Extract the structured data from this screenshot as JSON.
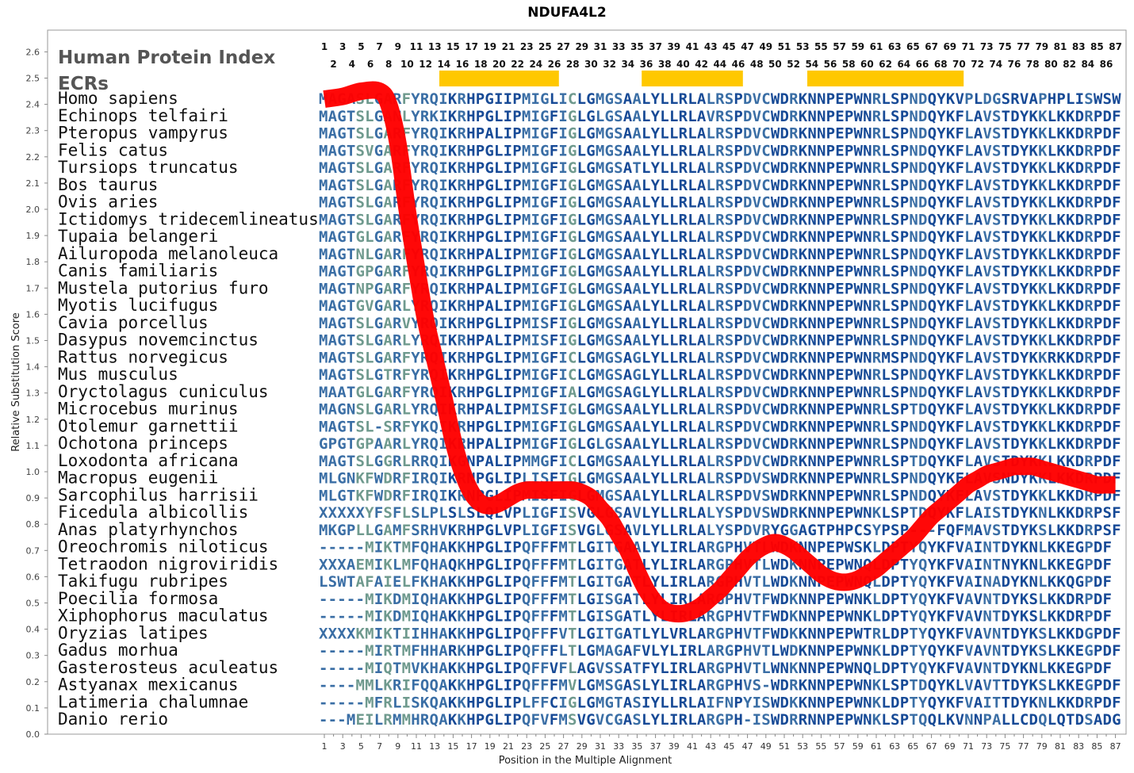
{
  "chart_data": {
    "type": "line",
    "title": "NDUFA4L2",
    "xlabel": "Position in the Multiple Alignment",
    "ylabel": "Relative Substitution Score",
    "ylim": [
      0.0,
      2.6
    ],
    "xlim": [
      1,
      87
    ],
    "yticks": [
      "0.0",
      "0.1",
      "0.2",
      "0.3",
      "0.4",
      "0.5",
      "0.6",
      "0.7",
      "0.8",
      "0.9",
      "1.0",
      "1.1",
      "1.2",
      "1.3",
      "1.4",
      "1.5",
      "1.6",
      "1.7",
      "1.8",
      "1.9",
      "2.0",
      "2.1",
      "2.2",
      "2.3",
      "2.4",
      "2.5",
      "2.6"
    ],
    "xticks_bottom": [
      "1",
      "3",
      "5",
      "7",
      "9",
      "11",
      "13",
      "15",
      "17",
      "19",
      "21",
      "23",
      "25",
      "27",
      "29",
      "31",
      "33",
      "35",
      "37",
      "39",
      "41",
      "43",
      "45",
      "47",
      "49",
      "51",
      "53",
      "55",
      "57",
      "59",
      "61",
      "63",
      "65",
      "67",
      "69",
      "71",
      "73",
      "75",
      "77",
      "79",
      "81",
      "83",
      "85",
      "87"
    ],
    "position_row_odd": [
      "1",
      "3",
      "5",
      "7",
      "9",
      "11",
      "13",
      "15",
      "17",
      "19",
      "21",
      "23",
      "25",
      "27",
      "29",
      "31",
      "33",
      "35",
      "37",
      "39",
      "41",
      "43",
      "45",
      "47",
      "49",
      "51",
      "53",
      "55",
      "57",
      "59",
      "61",
      "63",
      "65",
      "67",
      "69",
      "71",
      "73",
      "75",
      "77",
      "79",
      "81",
      "83",
      "85",
      "87"
    ],
    "position_row_even": [
      "2",
      "4",
      "6",
      "8",
      "10",
      "12",
      "14",
      "16",
      "18",
      "20",
      "22",
      "24",
      "26",
      "28",
      "30",
      "32",
      "34",
      "36",
      "38",
      "40",
      "42",
      "44",
      "46",
      "48",
      "50",
      "52",
      "54",
      "56",
      "58",
      "60",
      "62",
      "64",
      "66",
      "68",
      "70",
      "72",
      "74",
      "76",
      "78",
      "80",
      "82",
      "84",
      "86"
    ],
    "header_protein_index": "Human Protein Index",
    "header_ecrs": "ECRs",
    "ecr_ranges": [
      [
        14,
        26
      ],
      [
        36,
        46
      ],
      [
        54,
        70
      ]
    ],
    "ecr_color": "#ffc800",
    "curve_color": "#ff0000",
    "series": [
      {
        "x": [
          1,
          3,
          5,
          7,
          8,
          9,
          10,
          11,
          12,
          13,
          14,
          15,
          16,
          17,
          18,
          19,
          20,
          21,
          22,
          23,
          24,
          25,
          26,
          27,
          28,
          29,
          30,
          31,
          32,
          33,
          34,
          35,
          36,
          37,
          38,
          39,
          40,
          41,
          42,
          43,
          44,
          45,
          46,
          47,
          48,
          49,
          50,
          51,
          52,
          53,
          54,
          55,
          56,
          57,
          58,
          59,
          60,
          61,
          62,
          63,
          64,
          65,
          66,
          67,
          68,
          69,
          70,
          71,
          72,
          73,
          74,
          75,
          76,
          77,
          78,
          79,
          80,
          81,
          82,
          83,
          84,
          85,
          86,
          87
        ],
        "values": [
          2.42,
          2.43,
          2.45,
          2.45,
          2.4,
          2.25,
          2.0,
          1.78,
          1.58,
          1.43,
          1.28,
          1.12,
          1.0,
          0.92,
          0.88,
          0.87,
          0.88,
          0.9,
          0.92,
          0.93,
          0.93,
          0.93,
          0.93,
          0.93,
          0.93,
          0.92,
          0.9,
          0.86,
          0.82,
          0.76,
          0.7,
          0.62,
          0.55,
          0.5,
          0.47,
          0.46,
          0.46,
          0.47,
          0.49,
          0.52,
          0.55,
          0.59,
          0.63,
          0.67,
          0.7,
          0.72,
          0.73,
          0.72,
          0.7,
          0.67,
          0.64,
          0.61,
          0.59,
          0.58,
          0.58,
          0.59,
          0.61,
          0.63,
          0.66,
          0.69,
          0.72,
          0.75,
          0.79,
          0.83,
          0.86,
          0.89,
          0.92,
          0.95,
          0.97,
          0.99,
          1.0,
          1.01,
          1.02,
          1.02,
          1.02,
          1.01,
          1.0,
          0.99,
          0.98,
          0.97,
          0.96,
          0.95,
          0.95,
          0.95
        ]
      }
    ]
  },
  "alignment": [
    {
      "name": "Homo sapiens",
      "seq": "MAGASLGARFYRQIKRHPGIIPMIGLICLGMGSAALYLLRLALRSPDVCWDRKNNPEPWNRLSPNDQYKVPLDGSRVAPHPLISWSW"
    },
    {
      "name": "Echinops telfairi",
      "seq": "MAGTSLGANLYRKIKRHPGLIPMIGFIGLGLGSAALYLLRLAVRSPDVCWDRKNNPEPWNRLSPNDQYKFLAVSTDYKKLKKDRPDF"
    },
    {
      "name": "Pteropus vampyrus",
      "seq": "MAGTSLGARFYRQIKRHPALIPMIGFIGLGMGSAALYLLRLALRSPDVCWDRKNNPEPWNRLSPNDQYKFLAVSTDYKKLKKDRPDF"
    },
    {
      "name": "Felis catus",
      "seq": "MAGTSVGARFYRQIKRHPGLIPMIGFIGLGMGSAALYLLRLALRSPDVCWDRKNNPEPWNRLSPNDQYKFLAVSTDYKKLKKDRPDF"
    },
    {
      "name": "Tursiops truncatus",
      "seq": "MAGTSLGARFYRQIKRHPGLIPMIGFIGLGMGSATLYLLRLALRSPDVCWDRKNNPEPWNRLSPNDQYKFLAVSTDYKKLKKDRPDF"
    },
    {
      "name": "Bos taurus",
      "seq": "MAGTSLGARFYRQIKRHPGLIPMIGFIGLGMGSAALYLLRLALRSPDVCWDRKNNPEPWNRLSPNDQYKFLAVSTDYKKLKKDRPDF"
    },
    {
      "name": "Ovis aries",
      "seq": "MAGTSLGARFYRQIKRHPGLIPMIGFIGLGMGSAALYLLRLALRSPDVCWDRKNNPEPWNRLSPNDQYKFLAVSTDYKKLKKDRPDF"
    },
    {
      "name": "Ictidomys tridecemlineatus",
      "seq": "MAGTSLGARFYRQIKRHPGLIPMIGFIGLGMGSAALYLLRLALRSPDVCWDRKNNPEPWNRLSPNDQYKFLAVSTDYKKLKKDRPDF"
    },
    {
      "name": "Tupaia belangeri",
      "seq": "MAGTGLGARFYRQIKRHPGLIPMIGFIGLGMGSAALYLLRLALRSPDVCWDRKNNPEPWNRLSPNDQYKFLAVSTDYKKLKKDRPDF"
    },
    {
      "name": "Ailuropoda melanoleuca",
      "seq": "MAGTNLGARFYRQIKRHPALIPMIGFIGLGMGSAALYLLRLALRSPDVCWDRKNNPEPWNRLSPNDQYKFLAVSTDYKKLKKDRPDF"
    },
    {
      "name": "Canis familiaris",
      "seq": "MAGTGPGARFYRQIKRHPGLIPMIGFIGLGMGSAALYLLRLALRSPDVCWDRKNNPEPWNRLSPNDQYKFLAVSTDYKKLKKDRPDF"
    },
    {
      "name": "Mustela putorius furo",
      "seq": "MAGTNPGARFYRQIKRHPALIPMIGFIGLGMGSAALYLLRLALRSPDVCWDRKNNPEPWNRLSPNDQYKFLAVSTDYKKLKKDRPDF"
    },
    {
      "name": "Myotis lucifugus",
      "seq": "MAGTGVGARLYRQIKRHPALIPMIGFIGLGMGSAALYLLRLALRSPDVCWDRKNNPEPWNRLSPNDQYKFLAVSTDYKKLKKDRPDF"
    },
    {
      "name": "Cavia porcellus",
      "seq": "MAGTSLGARVYRQIKRHPGLIPMISFIGLGMGSAALYLLRLALRSPDVCWDRKNNPEPWNRLSPNDQYKFLAVSTDYKKLKKDRPDF"
    },
    {
      "name": "Dasypus novemcinctus",
      "seq": "MAGTSLGARLYRQIKRHPALIPMISFIGLGMGSAALYLLRLALRSPDVCWDRKNNPEPWNRLSPNDQYKFLAVSTDYKKLKKDRPDF"
    },
    {
      "name": "Rattus norvegicus",
      "seq": "MAGTSLGARFYRQIKRHPGLIPMIGFICLGMGSAGLYLLRLALRSPDVCWDRKNNPEPWNRMSPNDQYKFLAVSTDYKKRKKDRPDF"
    },
    {
      "name": "Mus musculus",
      "seq": "MAGTSLGTRFYRQIKRHPGLIPMIGFICLGMGSAGLYLLRLALRSPDVCWDRKNNPEPWNRLSPNDQYKFLAVSTDYKKLKKDRPDF"
    },
    {
      "name": "Oryctolagus cuniculus",
      "seq": "MAATGLGARFYRQIKRHPGLIPMIGFIALGMGSAGLYLLRLALRSPDVCWDRKNNPEPWNRLSPNDQYKFLAVSTDYKKLKKDRPDF"
    },
    {
      "name": "Microcebus murinus",
      "seq": "MAGNSLGARLYRQIKRHPALIPMISFIGLGMGSAALYLLRLALRSPDVCWDRKNNPEPWNRLSPTDQYKFLAVSTDYKKLKKDRPDF"
    },
    {
      "name": "Otolemur garnettii",
      "seq": "MAGTSL-SRFYKQIKRHPGLIPMIGFIGLGMGSAALYLLRLALRSPDVCWDRKNNPEPWNRLSPNDQYKFLAVSTDYKKLKKDRPDF"
    },
    {
      "name": "Ochotona princeps",
      "seq": "GPGTGPAARLYRQIKRHPALIPMIGFIGLGLGSAALYLLRLALRSPDVCWDRKNNPEPWNRLSPNDQYKFLAVSTDYKKLKKDRPDF"
    },
    {
      "name": "Loxodonta africana",
      "seq": "MAGTSLGGRLRRQIKGNPALIPMMGFICLGMGSAALYLLRLALRSPDVCWDRKNNPEPWNRLSPTDQYKFLAVSTDYKKLKKDRPDF"
    },
    {
      "name": "Macropus eugenii",
      "seq": "MLGNKFWDRFIRQIKRNPGLIPLISFIGLGMGSAALYLLRLALRSPDVSWDRKNNPEPWNRLSPNDQYKFLAVSNDYKKLKKDRPDF"
    },
    {
      "name": "Sarcophilus harrisii",
      "seq": "MLGTKFWDRFIRQIKRNPGLIPMISFIGLGMGSAALYLLRLALRSPDVSWDRKNNPEPWNRLSPNDQYKFLAVSTDYKKLKKDRPDF"
    },
    {
      "name": "Ficedula albicollis",
      "seq": "XXXXXYFSFLSLPLSLSLQLVPLIGFISVGLGSAVLYLLRLALYSPDVSWDRKNNPEPWNKLSPTDQYKFLAISTDYKNLKKDRPSF"
    },
    {
      "name": "Anas platyrhynchos",
      "seq": "MKGPLLGAMFSRHVKRHPGLVPLIGFISVGLGSAVLYLLRLALYSPDVRYGGAGTPHPCSYPSP---FQFMAVSTDYKSLKKDRPSF"
    },
    {
      "name": "Oreochromis niloticus",
      "seq": "-----MIKTMFQHAKKHPGLIPQFFFMTLGITGAALYLIRLARGPHVTLWDKNNPEPWSKLDPTYQYKFVAINTDYKNLKKEGPDF"
    },
    {
      "name": "Tetraodon nigroviridis",
      "seq": "XXXAEMIKLMFQHAQKHPGLIPQFFFMTLGITGATLYLIRLARGPHVTLWDKNNPEPWNQLDPTYQYKFVAINTNYKNLKKEGPDF"
    },
    {
      "name": "Takifugu rubripes",
      "seq": "LSWTAFAIELFKHAKKHPGLIPQFFFMTLGITGATLYLIRLARGPHVTLWDKNNPEPWNQLDPTYQYKFVAINADYKNLKKQGPDF"
    },
    {
      "name": "Poecilia formosa",
      "seq": "-----MIKDMIQHAKKHPGLIPQFFFMTLGISGATLYLIRLARGPHVTFWDKNNPEPWNKLDPTYQYKFVAVNTDYKSLKKDRPDF"
    },
    {
      "name": "Xiphophorus maculatus",
      "seq": "-----MIKDMIQHAKKHPGLIPQFFFMTLGISGATLYLIRLARGPHVTFWDKNNPEPWNKLDPTYQYKFVAVNTDYKSLKKDRPDF"
    },
    {
      "name": "Oryzias latipes",
      "seq": "XXXXKMIKTIIHHAKKHPGLIPQFFFVTLGITGATLYLVRLARGPHVTFWDKKNNPEPWTRLDPTYQYKFVAVNTDYKSLKKDGPDF"
    },
    {
      "name": "Gadus morhua",
      "seq": "-----MIRTMFHHARKHPGLIPQFFFLTLGMAGAFVLYLIRLARGPHVTLWDKNNPEPWNKLDPTYQYKFVAVNTDYKSLKKEGPDF"
    },
    {
      "name": "Gasterosteus aculeatus",
      "seq": "-----MIQTMVKHAKKHPGLIPQFFVFLAGVSSATFYLIRLARGPHVTLWNKNNPEPWNQLDPTYQYKFVAVNTDYKNLKKEGPDF"
    },
    {
      "name": "Astyanax mexicanus",
      "seq": "----MMLKRIFQQAKKHPGLIPQFFFMVLGMSGASLYLIRLARGPHVS-WDRKNNPEPWNKLSPTDQYKLVAVTTDYKSLKKEGPDF"
    },
    {
      "name": "Latimeria chalumnae",
      "seq": "-----MFRLISKQAKKHPGLIPLFFCIGLGMGTASIYLLRLAIFNPYISWDKKNNPEPWNKLDPTYQYKFVAITTDYKNLKKDRPDF"
    },
    {
      "name": "Danio rerio",
      "seq": "---MEILRMMHRQAKKHPGLIPQFVFMSVGVCGASLYLIRLARGPH-ISWDRRNNPEPWNKLSPTQQLKVNNPALLCDQLQTDSADG"
    }
  ],
  "palette": {
    "conserved": "#174a96",
    "mid": "#3a6ea5",
    "light": "#6f9a8e",
    "pale": "#a9c79a"
  }
}
